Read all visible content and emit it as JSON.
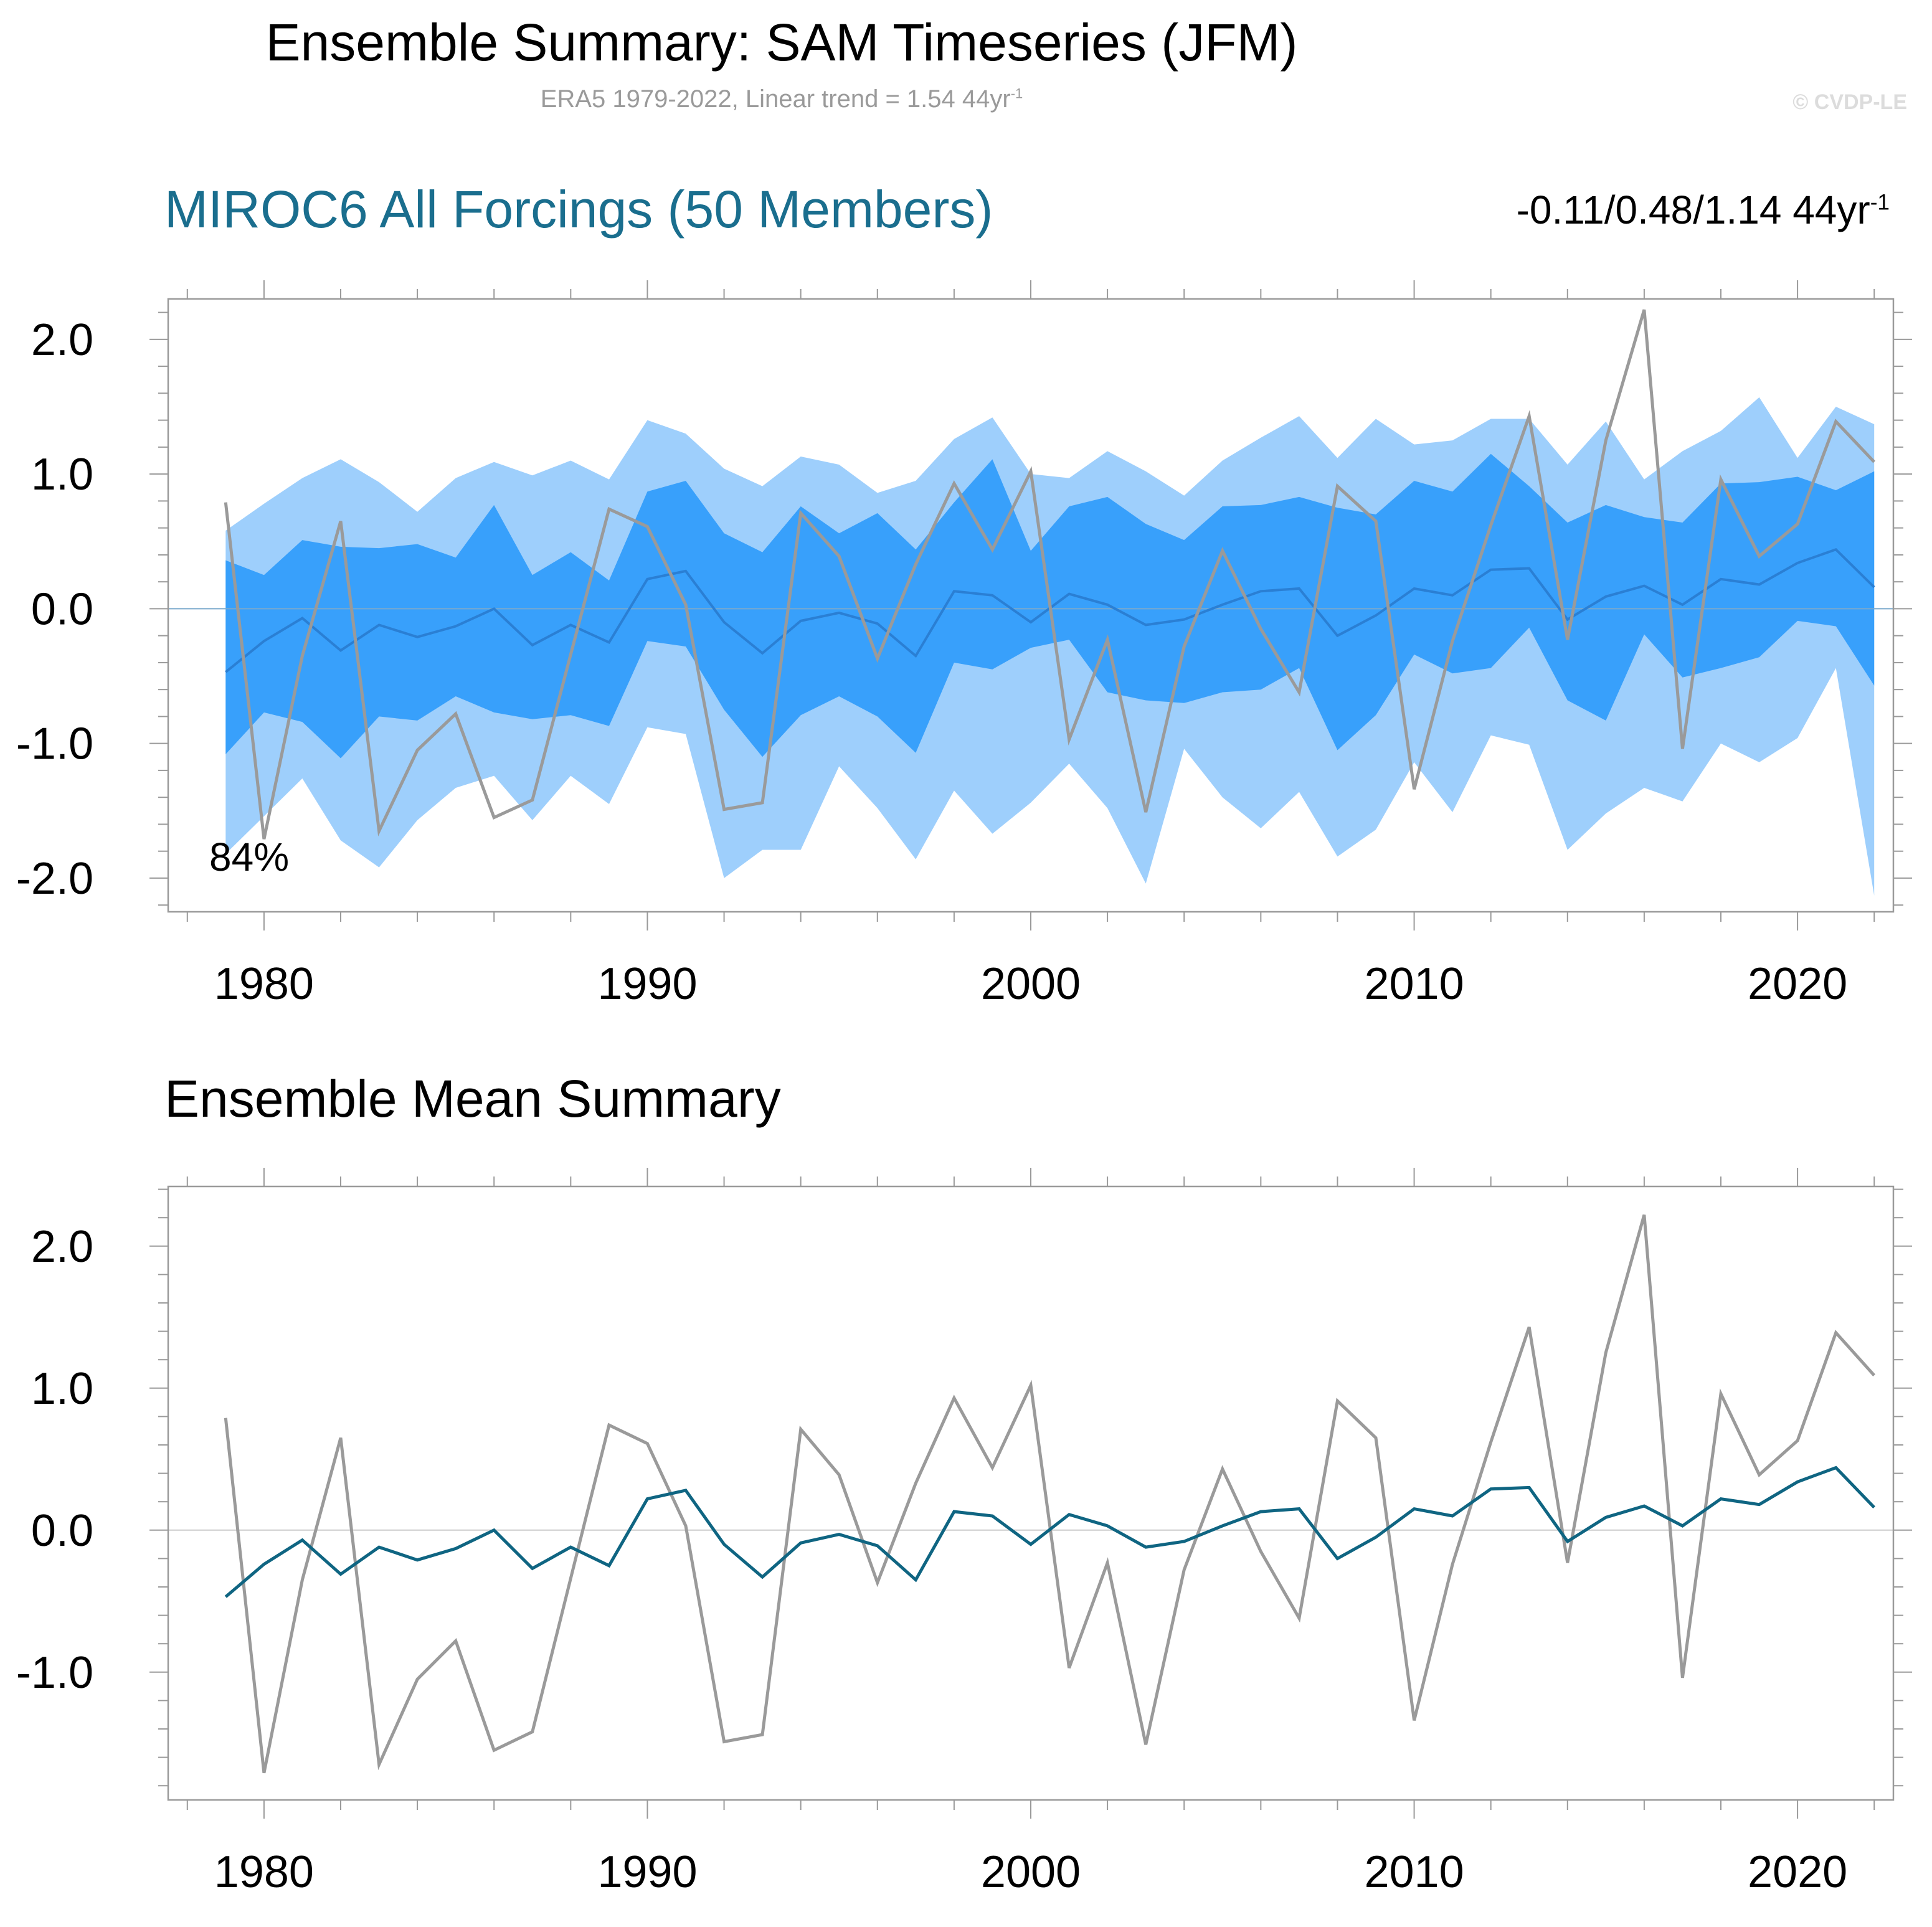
{
  "header": {
    "title": "Ensemble Summary: SAM Timeseries (JFM)",
    "subtitle": "ERA5 1979-2022, Linear trend = 1.54 44yr",
    "subtitle_sup": "-1",
    "watermark": "© CVDP-LE"
  },
  "panel1": {
    "title": "MIROC6 All Forcings (50 Members)",
    "stats": "-0.11/0.48/1.14 44yr",
    "stats_sup": "-1",
    "annotation": "84%"
  },
  "panel2": {
    "title": "Ensemble Mean Summary"
  },
  "colors": {
    "outer_band": "#9ecffc",
    "inner_band": "#38a0fb",
    "panel1_mean": "#2a7fd4",
    "panel2_mean": "#0f6582",
    "observations": "#9a9a9a",
    "title_blue": "#1a6e8e"
  },
  "chart_data": [
    {
      "type": "area",
      "x": [
        1979,
        1980,
        1981,
        1982,
        1983,
        1984,
        1985,
        1986,
        1987,
        1988,
        1989,
        1990,
        1991,
        1992,
        1993,
        1994,
        1995,
        1996,
        1997,
        1998,
        1999,
        2000,
        2001,
        2002,
        2003,
        2004,
        2005,
        2006,
        2007,
        2008,
        2009,
        2010,
        2011,
        2012,
        2013,
        2014,
        2015,
        2016,
        2017,
        2018,
        2019,
        2020,
        2021,
        2022
      ],
      "xticks": [
        1980,
        1990,
        2000,
        2010,
        2020
      ],
      "xtick_labels": [
        "1980",
        "1990",
        "2000",
        "2010",
        "2020"
      ],
      "yticks": [
        -2.0,
        -1.0,
        0.0,
        1.0,
        2.0
      ],
      "ytick_labels": [
        "-2.0",
        "-1.0",
        "0.0",
        "1.0",
        "2.0"
      ],
      "xlim": [
        1977.5,
        2022.5
      ],
      "ylim": [
        -2.25,
        2.3
      ],
      "zero_line": true,
      "series": [
        {
          "role": "outer_band_upper",
          "values": [
            0.58,
            0.78,
            0.97,
            1.11,
            0.94,
            0.72,
            0.97,
            1.09,
            0.99,
            1.1,
            0.96,
            1.4,
            1.3,
            1.04,
            0.91,
            1.13,
            1.07,
            0.86,
            0.95,
            1.26,
            1.42,
            1.0,
            0.97,
            1.17,
            1.02,
            0.84,
            1.1,
            1.27,
            1.43,
            1.12,
            1.41,
            1.22,
            1.25,
            1.41,
            1.41,
            1.07,
            1.39,
            0.96,
            1.17,
            1.32,
            1.57,
            1.12,
            1.5,
            1.37
          ]
        },
        {
          "role": "inner_band_upper",
          "values": [
            0.36,
            0.25,
            0.51,
            0.46,
            0.45,
            0.48,
            0.38,
            0.77,
            0.25,
            0.42,
            0.21,
            0.87,
            0.95,
            0.56,
            0.42,
            0.76,
            0.56,
            0.71,
            0.44,
            0.79,
            1.11,
            0.43,
            0.76,
            0.83,
            0.63,
            0.51,
            0.76,
            0.77,
            0.83,
            0.75,
            0.7,
            0.95,
            0.87,
            1.15,
            0.91,
            0.64,
            0.77,
            0.68,
            0.64,
            0.93,
            0.94,
            0.98,
            0.88,
            1.02
          ]
        },
        {
          "role": "inner_band_lower",
          "values": [
            -1.08,
            -0.77,
            -0.84,
            -1.11,
            -0.8,
            -0.83,
            -0.65,
            -0.77,
            -0.82,
            -0.79,
            -0.87,
            -0.24,
            -0.28,
            -0.75,
            -1.1,
            -0.79,
            -0.65,
            -0.8,
            -1.07,
            -0.4,
            -0.45,
            -0.29,
            -0.23,
            -0.62,
            -0.68,
            -0.7,
            -0.62,
            -0.6,
            -0.44,
            -1.05,
            -0.79,
            -0.34,
            -0.48,
            -0.44,
            -0.14,
            -0.68,
            -0.83,
            -0.19,
            -0.51,
            -0.44,
            -0.36,
            -0.09,
            -0.13,
            -0.57
          ]
        },
        {
          "role": "outer_band_lower",
          "values": [
            -1.82,
            -1.54,
            -1.26,
            -1.72,
            -1.92,
            -1.57,
            -1.33,
            -1.24,
            -1.57,
            -1.24,
            -1.45,
            -0.88,
            -0.93,
            -2.0,
            -1.79,
            -1.79,
            -1.17,
            -1.48,
            -1.86,
            -1.35,
            -1.67,
            -1.44,
            -1.15,
            -1.48,
            -2.04,
            -1.04,
            -1.4,
            -1.63,
            -1.36,
            -1.84,
            -1.64,
            -1.14,
            -1.51,
            -0.94,
            -1.01,
            -1.79,
            -1.52,
            -1.33,
            -1.43,
            -1.0,
            -1.14,
            -0.96,
            -0.44,
            -2.13
          ]
        },
        {
          "role": "ensemble_mean",
          "values": [
            -0.47,
            -0.24,
            -0.07,
            -0.31,
            -0.12,
            -0.21,
            -0.13,
            0.0,
            -0.27,
            -0.12,
            -0.25,
            0.22,
            0.28,
            -0.1,
            -0.33,
            -0.09,
            -0.03,
            -0.11,
            -0.35,
            0.13,
            0.1,
            -0.1,
            0.11,
            0.03,
            -0.12,
            -0.08,
            0.03,
            0.13,
            0.15,
            -0.2,
            -0.05,
            0.15,
            0.1,
            0.29,
            0.3,
            -0.08,
            0.09,
            0.17,
            0.03,
            0.22,
            0.18,
            0.34,
            0.44,
            0.16
          ]
        },
        {
          "role": "observations_era5",
          "values": [
            0.79,
            -1.71,
            -0.35,
            0.65,
            -1.65,
            -1.05,
            -0.78,
            -1.55,
            -1.42,
            -0.34,
            0.74,
            0.61,
            0.03,
            -1.49,
            -1.44,
            0.71,
            0.39,
            -0.37,
            0.33,
            0.93,
            0.44,
            1.02,
            -0.97,
            -0.23,
            -1.51,
            -0.28,
            0.43,
            -0.15,
            -0.62,
            0.91,
            0.65,
            -1.34,
            -0.24,
            0.62,
            1.43,
            -0.23,
            1.25,
            2.22,
            -1.04,
            0.96,
            0.39,
            0.63,
            1.39,
            1.09
          ]
        }
      ]
    },
    {
      "type": "line",
      "x": [
        1979,
        1980,
        1981,
        1982,
        1983,
        1984,
        1985,
        1986,
        1987,
        1988,
        1989,
        1990,
        1991,
        1992,
        1993,
        1994,
        1995,
        1996,
        1997,
        1998,
        1999,
        2000,
        2001,
        2002,
        2003,
        2004,
        2005,
        2006,
        2007,
        2008,
        2009,
        2010,
        2011,
        2012,
        2013,
        2014,
        2015,
        2016,
        2017,
        2018,
        2019,
        2020,
        2021,
        2022
      ],
      "xticks": [
        1980,
        1990,
        2000,
        2010,
        2020
      ],
      "xtick_labels": [
        "1980",
        "1990",
        "2000",
        "2010",
        "2020"
      ],
      "yticks": [
        -1.0,
        0.0,
        1.0,
        2.0
      ],
      "ytick_labels": [
        "-1.0",
        "0.0",
        "1.0",
        "2.0"
      ],
      "xlim": [
        1977.5,
        2022.5
      ],
      "ylim": [
        -1.9,
        2.42
      ],
      "zero_line": true,
      "series": [
        {
          "role": "ensemble_mean",
          "values": [
            -0.47,
            -0.24,
            -0.07,
            -0.31,
            -0.12,
            -0.21,
            -0.13,
            0.0,
            -0.27,
            -0.12,
            -0.25,
            0.22,
            0.28,
            -0.1,
            -0.33,
            -0.09,
            -0.03,
            -0.11,
            -0.35,
            0.13,
            0.1,
            -0.1,
            0.11,
            0.03,
            -0.12,
            -0.08,
            0.03,
            0.13,
            0.15,
            -0.2,
            -0.05,
            0.15,
            0.1,
            0.29,
            0.3,
            -0.08,
            0.09,
            0.17,
            0.03,
            0.22,
            0.18,
            0.34,
            0.44,
            0.16
          ]
        },
        {
          "role": "observations_era5",
          "values": [
            0.79,
            -1.71,
            -0.35,
            0.65,
            -1.65,
            -1.05,
            -0.78,
            -1.55,
            -1.42,
            -0.34,
            0.74,
            0.61,
            0.03,
            -1.49,
            -1.44,
            0.71,
            0.39,
            -0.37,
            0.33,
            0.93,
            0.44,
            1.02,
            -0.97,
            -0.23,
            -1.51,
            -0.28,
            0.43,
            -0.15,
            -0.62,
            0.91,
            0.65,
            -1.34,
            -0.24,
            0.62,
            1.43,
            -0.23,
            1.25,
            2.22,
            -1.04,
            0.96,
            0.39,
            0.63,
            1.39,
            1.09
          ]
        }
      ]
    }
  ]
}
